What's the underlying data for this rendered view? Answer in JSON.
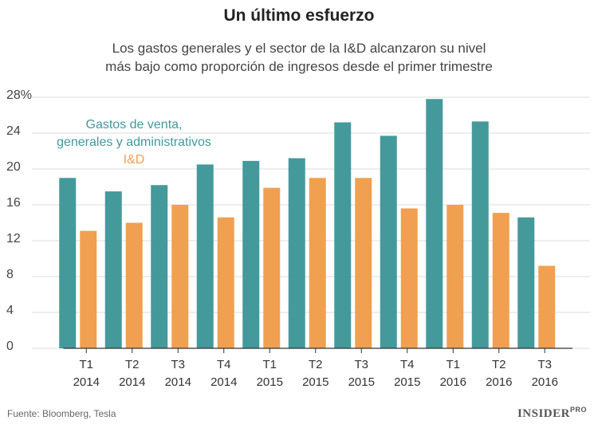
{
  "chart_data": {
    "type": "bar",
    "title": "Un último esfuerzo",
    "subtitle": "Los gastos generales y el sector de la I&D alcanzaron su nivel\nmás bajo como proporción de ingresos desde el primer trimestre",
    "categories": [
      "T1\n2014",
      "T2\n2014",
      "T3\n2014",
      "T4\n2014",
      "T1\n2015",
      "T2\n2015",
      "T3\n2015",
      "T4\n2015",
      "T1\n2016",
      "T2\n2016",
      "T3\n2016"
    ],
    "series": [
      {
        "name": "Gastos de venta,\ngenerales y administrativos",
        "color": "#44999b",
        "values": [
          19.0,
          17.5,
          18.2,
          20.5,
          20.9,
          21.2,
          25.2,
          23.7,
          27.8,
          25.3,
          14.6
        ]
      },
      {
        "name": "I&D",
        "color": "#f0a050",
        "values": [
          13.1,
          14.0,
          16.0,
          14.6,
          17.9,
          19.0,
          19.0,
          15.6,
          16.0,
          15.1,
          9.2
        ]
      }
    ],
    "ylim": [
      0,
      28
    ],
    "yticks": [
      0,
      4,
      8,
      12,
      16,
      20,
      24,
      {
        "value": 28,
        "label": "28%"
      }
    ],
    "grid": true,
    "source": "Fuente: Bloomberg, Tesla",
    "brand": "INSIDER",
    "brand_suffix": "PRO"
  }
}
